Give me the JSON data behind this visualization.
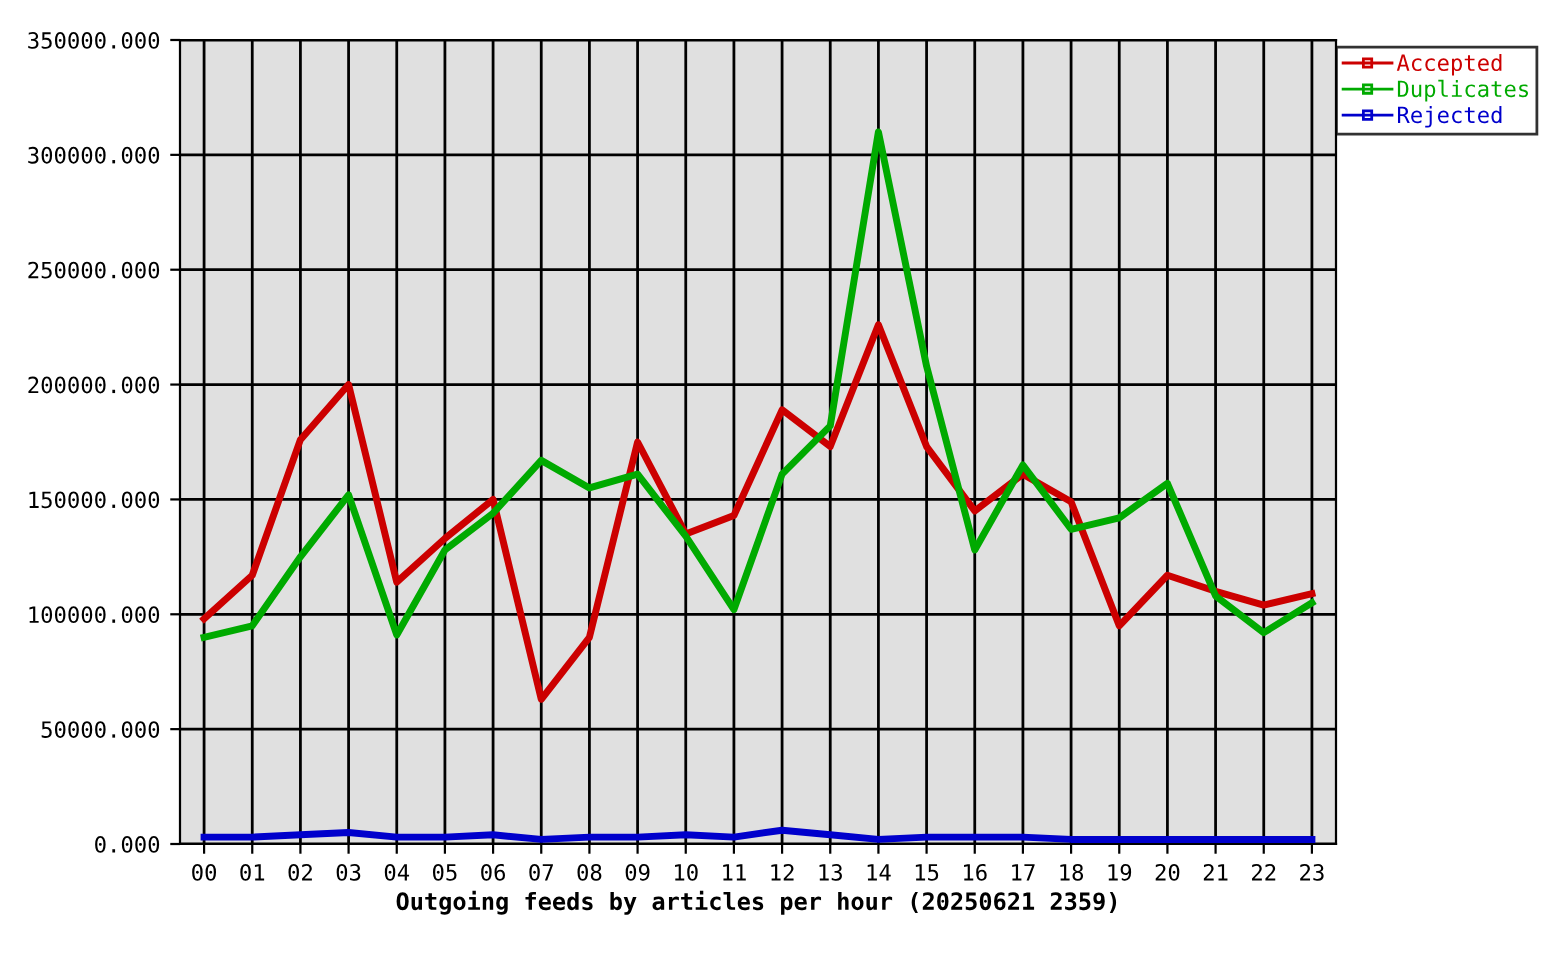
{
  "chart_data": {
    "type": "line",
    "xlabel": "Outgoing feeds by articles per hour (20250621 2359)",
    "categories": [
      "00",
      "01",
      "02",
      "03",
      "04",
      "05",
      "06",
      "07",
      "08",
      "09",
      "10",
      "11",
      "12",
      "13",
      "14",
      "15",
      "16",
      "17",
      "18",
      "19",
      "20",
      "21",
      "22",
      "23"
    ],
    "series": [
      {
        "name": "Accepted",
        "color": "#cc0000",
        "values": [
          98000,
          117000,
          176000,
          200000,
          114000,
          133000,
          150000,
          63000,
          90000,
          175000,
          135000,
          143000,
          189000,
          173000,
          226000,
          173000,
          145000,
          161000,
          149000,
          95000,
          117000,
          110000,
          104000,
          109000
        ]
      },
      {
        "name": "Duplicates",
        "color": "#00aa00",
        "values": [
          90000,
          95000,
          125000,
          152000,
          91000,
          128000,
          144000,
          167000,
          155000,
          161000,
          134000,
          102000,
          161000,
          182000,
          310000,
          208000,
          128000,
          165000,
          137000,
          142000,
          157000,
          108000,
          92000,
          105000
        ]
      },
      {
        "name": "Rejected",
        "color": "#0000cc",
        "values": [
          3000,
          3000,
          4000,
          5000,
          3000,
          3000,
          4000,
          2000,
          3000,
          3000,
          4000,
          3000,
          6000,
          4000,
          2000,
          3000,
          3000,
          3000,
          2000,
          2000,
          2000,
          2000,
          2000,
          2000
        ]
      }
    ],
    "ylim": [
      0,
      350000
    ],
    "yticks": [
      {
        "value": 0,
        "label": "0.000"
      },
      {
        "value": 50000,
        "label": "50000.000"
      },
      {
        "value": 100000,
        "label": "100000.000"
      },
      {
        "value": 150000,
        "label": "150000.000"
      },
      {
        "value": 200000,
        "label": "200000.000"
      },
      {
        "value": 250000,
        "label": "250000.000"
      },
      {
        "value": 300000,
        "label": "300000.000"
      },
      {
        "value": 350000,
        "label": "350000.000"
      }
    ],
    "grid": true,
    "legend": "top right",
    "marker": "none",
    "line_style": "solid"
  }
}
